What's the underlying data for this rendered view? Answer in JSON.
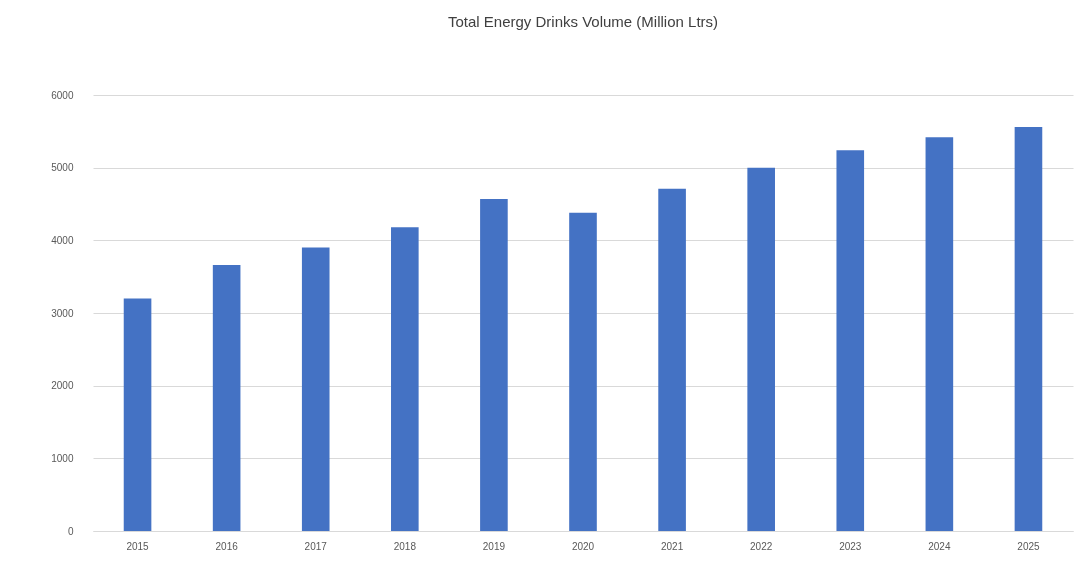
{
  "chart_data": {
    "type": "bar",
    "title": "Total Energy Drinks Volume (Million Ltrs)",
    "categories": [
      "2015",
      "2016",
      "2017",
      "2018",
      "2019",
      "2020",
      "2021",
      "2022",
      "2023",
      "2024",
      "2025"
    ],
    "values": [
      3200,
      3660,
      3900,
      4180,
      4570,
      4380,
      4710,
      5000,
      5240,
      5420,
      5560
    ],
    "color": "#4472c4",
    "ylim": [
      0,
      6000
    ],
    "yticks": [
      0,
      1000,
      2000,
      3000,
      4000,
      5000,
      6000
    ],
    "grid": "y"
  }
}
